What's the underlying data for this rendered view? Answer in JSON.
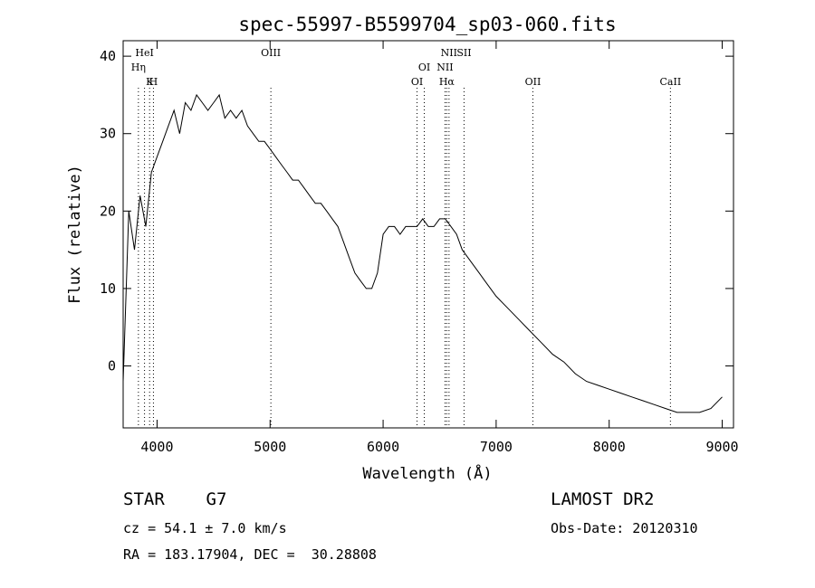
{
  "chart_data": {
    "type": "line",
    "title": "spec-55997-B5599704_sp03-060.fits",
    "xlabel": "Wavelength (Å)",
    "ylabel": "Flux (relative)",
    "xlim": [
      3700,
      9100
    ],
    "ylim": [
      -8,
      42
    ],
    "xticks": [
      4000,
      5000,
      6000,
      7000,
      8000,
      9000
    ],
    "yticks": [
      0,
      10,
      20,
      30,
      40
    ],
    "grid": false,
    "series": [
      {
        "x": [
          3700,
          3750,
          3800,
          3850,
          3900,
          3950,
          4000,
          4050,
          4100,
          4150,
          4200,
          4250,
          4300,
          4350,
          4400,
          4450,
          4500,
          4550,
          4600,
          4650,
          4700,
          4750,
          4800,
          4850,
          4900,
          4950,
          5000,
          5050,
          5100,
          5150,
          5200,
          5250,
          5300,
          5350,
          5400,
          5450,
          5500,
          5550,
          5600,
          5650,
          5700,
          5750,
          5800,
          5850,
          5900,
          5950,
          6000,
          6050,
          6100,
          6150,
          6200,
          6250,
          6300,
          6350,
          6400,
          6450,
          6500,
          6550,
          6600,
          6650,
          6700,
          6750,
          6800,
          6850,
          6900,
          6950,
          7000,
          7100,
          7200,
          7300,
          7400,
          7500,
          7600,
          7700,
          7800,
          7900,
          8000,
          8100,
          8200,
          8300,
          8400,
          8500,
          8600,
          8700,
          8800,
          8900,
          9000
        ],
        "y": [
          -2,
          20,
          15,
          22,
          18,
          25,
          27,
          29,
          31,
          33,
          30,
          34,
          33,
          35,
          34,
          33,
          34,
          35,
          32,
          33,
          32,
          33,
          31,
          30,
          29,
          29,
          28,
          27,
          26,
          25,
          24,
          24,
          23,
          22,
          21,
          21,
          20,
          19,
          18,
          16,
          14,
          12,
          11,
          10,
          10,
          12,
          17,
          18,
          18,
          17,
          18,
          18,
          18,
          19,
          18,
          18,
          19,
          19,
          18,
          17,
          15,
          14,
          13,
          12,
          11,
          10,
          9,
          7.5,
          6,
          4.5,
          3,
          1.5,
          0.5,
          -1,
          -2,
          -2.5,
          -3,
          -3.5,
          -4,
          -4.5,
          -5,
          -5.5,
          -6,
          -6,
          -6,
          -5.5,
          -4
        ]
      }
    ],
    "line_labels": [
      {
        "name": "HeI",
        "x": 3889
      },
      {
        "name": "Hη",
        "x": 3835
      },
      {
        "name": "H",
        "x": 3968
      },
      {
        "name": "K",
        "x": 3934
      },
      {
        "name": "OIII",
        "x": 5007
      },
      {
        "name": "OI",
        "x": 6364
      },
      {
        "name": "OI",
        "x": 6300
      },
      {
        "name": "NII",
        "x": 6583
      },
      {
        "name": "SII",
        "x": 6716
      },
      {
        "name": "NII",
        "x": 6548
      },
      {
        "name": "Hα",
        "x": 6563
      },
      {
        "name": "OII",
        "x": 7325
      },
      {
        "name": "CaII",
        "x": 8542
      }
    ]
  },
  "footer": {
    "object_class": "STAR    G7",
    "cz": "cz = 54.1 ± 7.0 km/s",
    "coords": "RA = 183.17904, DEC =  30.28808",
    "survey": "LAMOST DR2",
    "obs_date": "Obs-Date: 20120310"
  }
}
